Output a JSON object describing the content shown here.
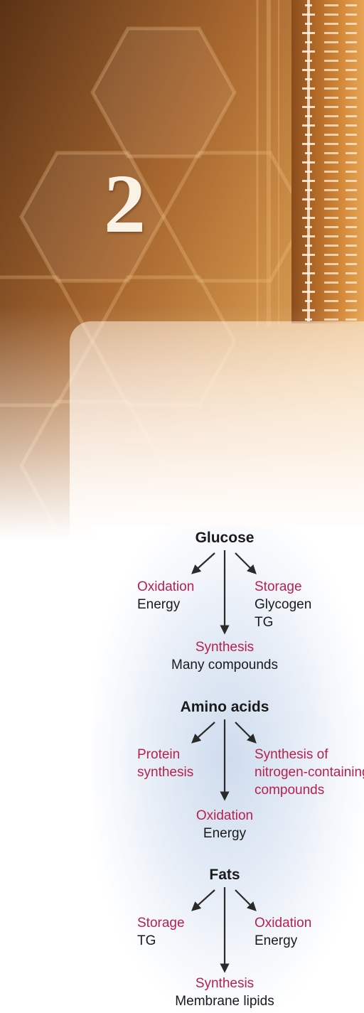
{
  "chapter": {
    "number": "2"
  },
  "diagram": {
    "glucose": {
      "title": "Glucose",
      "left": {
        "process": "Oxidation",
        "product": "Energy"
      },
      "right": {
        "process": "Storage",
        "product_line1": "Glycogen",
        "product_line2": "TG"
      },
      "bottom": {
        "process": "Synthesis",
        "product": "Many compounds"
      }
    },
    "amino_acids": {
      "title": "Amino acids",
      "left": {
        "process_line1": "Protein",
        "process_line2": "synthesis"
      },
      "right": {
        "process_line1": "Synthesis of",
        "process_line2": "nitrogen-containing",
        "process_line3": "compounds"
      },
      "bottom": {
        "process": "Oxidation",
        "product": "Energy"
      }
    },
    "fats": {
      "title": "Fats",
      "left": {
        "process": "Storage",
        "product": "TG"
      },
      "right": {
        "process": "Oxidation",
        "product": "Energy"
      },
      "bottom": {
        "process": "Synthesis",
        "product": "Membrane lipids"
      }
    }
  },
  "colors": {
    "process_text": "#b5224f",
    "product_text": "#1a1a1a",
    "arrow": "#2a2a2a",
    "banner_dark": "#5a3214",
    "banner_light": "#e8b873"
  }
}
